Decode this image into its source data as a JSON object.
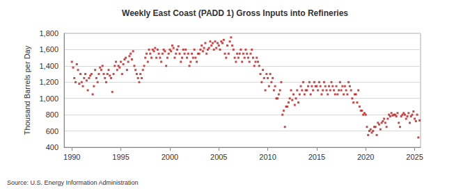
{
  "chart_data": {
    "type": "scatter",
    "title": "Weekly East Coast (PADD 1) Gross Inputs into Refineries",
    "y_label": "Thousand Barrels per Day",
    "source": "Source: U.S. Energy Information Administration",
    "color": "#b22222",
    "marker": "square",
    "grid": true,
    "xlim": [
      1989.2,
      2025.6
    ],
    "xticks": [
      1990,
      1995,
      2000,
      2005,
      2010,
      2015,
      2020,
      2025
    ],
    "ylim": [
      400,
      1800
    ],
    "yticks": [
      400,
      600,
      800,
      {
        "value": 1000,
        "label": "1,000"
      },
      {
        "value": 1200,
        "label": "1,200"
      },
      {
        "value": 1400,
        "label": "1,400"
      },
      {
        "value": 1600,
        "label": "1,600"
      },
      {
        "value": 1800,
        "label": "1,800"
      }
    ],
    "x": [
      1990,
      1990.125,
      1990.25,
      1990.375,
      1990.5,
      1990.625,
      1990.75,
      1990.875,
      1991,
      1991.125,
      1991.25,
      1991.375,
      1991.5,
      1991.625,
      1991.75,
      1991.875,
      1992,
      1992.125,
      1992.25,
      1992.375,
      1992.5,
      1992.625,
      1992.75,
      1992.875,
      1993,
      1993.125,
      1993.25,
      1993.375,
      1993.5,
      1993.625,
      1993.75,
      1993.875,
      1994,
      1994.125,
      1994.25,
      1994.375,
      1994.5,
      1994.625,
      1994.75,
      1994.875,
      1995,
      1995.125,
      1995.25,
      1995.375,
      1995.5,
      1995.625,
      1995.75,
      1995.875,
      1996,
      1996.125,
      1996.25,
      1996.375,
      1996.5,
      1996.625,
      1996.75,
      1996.875,
      1997,
      1997.125,
      1997.25,
      1997.375,
      1997.5,
      1997.625,
      1997.75,
      1997.875,
      1998,
      1998.125,
      1998.25,
      1998.375,
      1998.5,
      1998.625,
      1998.75,
      1998.875,
      1999,
      1999.125,
      1999.25,
      1999.375,
      1999.5,
      1999.625,
      1999.75,
      1999.875,
      2000,
      2000.125,
      2000.25,
      2000.375,
      2000.5,
      2000.625,
      2000.75,
      2000.875,
      2001,
      2001.125,
      2001.25,
      2001.375,
      2001.5,
      2001.625,
      2001.75,
      2001.875,
      2002,
      2002.125,
      2002.25,
      2002.375,
      2002.5,
      2002.625,
      2002.75,
      2002.875,
      2003,
      2003.125,
      2003.25,
      2003.375,
      2003.5,
      2003.625,
      2003.75,
      2003.875,
      2004,
      2004.125,
      2004.25,
      2004.375,
      2004.5,
      2004.625,
      2004.75,
      2004.875,
      2005,
      2005.125,
      2005.25,
      2005.375,
      2005.5,
      2005.625,
      2005.75,
      2005.875,
      2006,
      2006.125,
      2006.25,
      2006.375,
      2006.5,
      2006.625,
      2006.75,
      2006.875,
      2007,
      2007.125,
      2007.25,
      2007.375,
      2007.5,
      2007.625,
      2007.75,
      2007.875,
      2008,
      2008.125,
      2008.25,
      2008.375,
      2008.5,
      2008.625,
      2008.75,
      2008.875,
      2009,
      2009.125,
      2009.25,
      2009.375,
      2009.5,
      2009.625,
      2009.75,
      2009.875,
      2010,
      2010.125,
      2010.25,
      2010.375,
      2010.5,
      2010.625,
      2010.75,
      2010.875,
      2011,
      2011.125,
      2011.25,
      2011.375,
      2011.5,
      2011.625,
      2011.75,
      2011.875,
      2012,
      2012.125,
      2012.25,
      2012.375,
      2012.5,
      2012.625,
      2012.75,
      2012.875,
      2013,
      2013.125,
      2013.25,
      2013.375,
      2013.5,
      2013.625,
      2013.75,
      2013.875,
      2014,
      2014.125,
      2014.25,
      2014.375,
      2014.5,
      2014.625,
      2014.75,
      2014.875,
      2015,
      2015.125,
      2015.25,
      2015.375,
      2015.5,
      2015.625,
      2015.75,
      2015.875,
      2016,
      2016.125,
      2016.25,
      2016.375,
      2016.5,
      2016.625,
      2016.75,
      2016.875,
      2017,
      2017.125,
      2017.25,
      2017.375,
      2017.5,
      2017.625,
      2017.75,
      2017.875,
      2018,
      2018.125,
      2018.25,
      2018.375,
      2018.5,
      2018.625,
      2018.75,
      2018.875,
      2019,
      2019.125,
      2019.25,
      2019.375,
      2019.5,
      2019.625,
      2019.75,
      2019.875,
      2020,
      2020.125,
      2020.25,
      2020.375,
      2020.5,
      2020.625,
      2020.75,
      2020.875,
      2021,
      2021.125,
      2021.25,
      2021.375,
      2021.5,
      2021.625,
      2021.75,
      2021.875,
      2022,
      2022.125,
      2022.25,
      2022.375,
      2022.5,
      2022.625,
      2022.75,
      2022.875,
      2023,
      2023.125,
      2023.25,
      2023.375,
      2023.5,
      2023.625,
      2023.75,
      2023.875,
      2024,
      2024.125,
      2024.25,
      2024.375,
      2024.5,
      2024.625,
      2024.75,
      2024.875,
      2025,
      2025.125,
      2025.25,
      2025.375,
      2025.5
    ],
    "values": [
      1450,
      1380,
      1250,
      1200,
      1420,
      1350,
      1180,
      1300,
      1200,
      1150,
      1250,
      1300,
      1220,
      1100,
      1250,
      1280,
      1300,
      1050,
      1150,
      1350,
      1250,
      1200,
      1300,
      1380,
      1350,
      1400,
      1300,
      1250,
      1200,
      1300,
      1350,
      1280,
      1250,
      1080,
      1300,
      1400,
      1450,
      1350,
      1400,
      1380,
      1450,
      1300,
      1420,
      1480,
      1500,
      1350,
      1450,
      1520,
      1550,
      1480,
      1580,
      1400,
      1350,
      1300,
      1250,
      1200,
      1300,
      1250,
      1350,
      1400,
      1500,
      1550,
      1450,
      1600,
      1550,
      1500,
      1600,
      1580,
      1620,
      1500,
      1600,
      1550,
      1500,
      1450,
      1550,
      1600,
      1580,
      1400,
      1500,
      1550,
      1600,
      1580,
      1650,
      1620,
      1500,
      1550,
      1600,
      1640,
      1550,
      1450,
      1500,
      1600,
      1550,
      1600,
      1500,
      1550,
      1400,
      1450,
      1550,
      1500,
      1600,
      1500,
      1450,
      1550,
      1550,
      1600,
      1650,
      1580,
      1620,
      1680,
      1550,
      1600,
      1620,
      1700,
      1650,
      1680,
      1600,
      1700,
      1620,
      1680,
      1650,
      1600,
      1700,
      1680,
      1720,
      1550,
      1500,
      1650,
      1550,
      1700,
      1750,
      1650,
      1600,
      1500,
      1450,
      1550,
      1500,
      1550,
      1600,
      1450,
      1550,
      1500,
      1600,
      1550,
      1500,
      1450,
      1550,
      1600,
      1500,
      1400,
      1450,
      1500,
      1450,
      1400,
      1300,
      1200,
      1350,
      1250,
      1100,
      1300,
      1250,
      1150,
      1300,
      1200,
      1250,
      1100,
      1150,
      1000,
      1000,
      1050,
      1100,
      1200,
      800,
      850,
      650,
      900,
      900,
      950,
      1000,
      1100,
      980,
      1050,
      920,
      1000,
      1100,
      950,
      1050,
      1150,
      1100,
      1200,
      1050,
      1100,
      1100,
      1150,
      1200,
      1050,
      1150,
      1100,
      1200,
      1150,
      1150,
      1100,
      1200,
      1150,
      1050,
      1100,
      1200,
      1150,
      1100,
      1050,
      1150,
      1100,
      1200,
      1150,
      1100,
      1050,
      1150,
      1050,
      1100,
      1200,
      1100,
      1150,
      1050,
      1150,
      1100,
      1050,
      1200,
      1150,
      1100,
      1000,
      950,
      1050,
      1050,
      950,
      1100,
      900,
      850,
      850,
      800,
      820,
      800,
      650,
      550,
      600,
      620,
      580,
      600,
      650,
      650,
      550,
      700,
      680,
      620,
      700,
      720,
      750,
      700,
      650,
      750,
      800,
      780,
      820,
      790,
      800,
      800,
      780,
      820,
      700,
      650,
      780,
      800,
      820,
      800,
      750,
      780,
      820,
      700,
      780,
      800,
      840,
      750,
      720,
      800,
      520,
      730
    ]
  }
}
